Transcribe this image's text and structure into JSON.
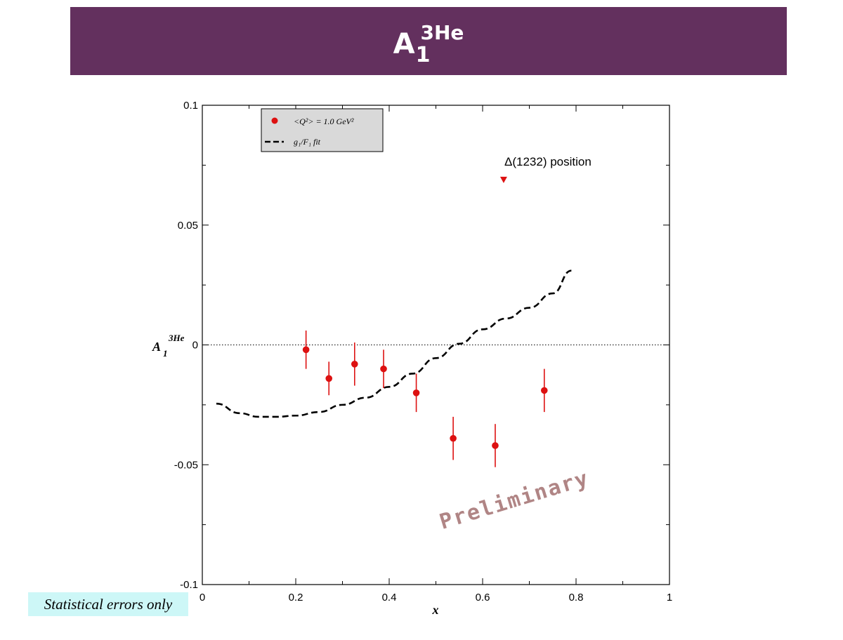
{
  "title": {
    "base": "A",
    "sub": "1",
    "sup": "3He"
  },
  "note": "Statistical errors only",
  "chart_data": {
    "type": "scatter",
    "xlabel": "x",
    "ylabel": {
      "base": "A",
      "sub": "1",
      "sup": "3He"
    },
    "xlim": [
      0,
      1
    ],
    "ylim": [
      -0.1,
      0.1
    ],
    "x_ticks": [
      0,
      0.2,
      0.4,
      0.6,
      0.8,
      1
    ],
    "x_tick_labels": [
      "0",
      "0.2",
      "0.4",
      "0.6",
      "0.8",
      "1"
    ],
    "y_ticks": [
      -0.1,
      -0.05,
      0,
      0.05,
      0.1
    ],
    "y_tick_labels": [
      "-0.1",
      "-0.05",
      "0",
      "0.05",
      "0.1"
    ],
    "zero_line": true,
    "legend": {
      "position": "top-left",
      "entries": [
        {
          "label": "<Q²> = 1.0 GeV²",
          "marker": "circle"
        },
        {
          "label": "g₁/F₁ fit",
          "marker": "dashed-line"
        }
      ]
    },
    "series": [
      {
        "name": "<Q²> = 1.0 GeV²",
        "type": "scatter",
        "color": "#dd1111",
        "x": [
          0.222,
          0.271,
          0.326,
          0.388,
          0.458,
          0.537,
          0.627,
          0.732
        ],
        "y": [
          -0.002,
          -0.014,
          -0.008,
          -0.01,
          -0.02,
          -0.039,
          -0.042,
          -0.019
        ],
        "yerr": [
          0.008,
          0.007,
          0.009,
          0.008,
          0.008,
          0.009,
          0.009,
          0.009
        ]
      },
      {
        "name": "g₁/F₁ fit",
        "type": "line",
        "style": "dashed",
        "color": "#000000",
        "x": [
          0.03,
          0.08,
          0.12,
          0.16,
          0.2,
          0.25,
          0.3,
          0.35,
          0.4,
          0.45,
          0.5,
          0.55,
          0.6,
          0.65,
          0.7,
          0.75,
          0.79
        ],
        "y": [
          -0.0245,
          -0.0285,
          -0.03,
          -0.03,
          -0.0295,
          -0.028,
          -0.025,
          -0.022,
          -0.0175,
          -0.012,
          -0.0055,
          0.0005,
          0.0065,
          0.011,
          0.0155,
          0.0215,
          0.031
        ]
      }
    ],
    "annotations": [
      {
        "text": "Δ(1232) position",
        "x": 0.645,
        "y": 0.069,
        "marker": "triangle-down",
        "color": "#dd1111"
      },
      {
        "text": "Preliminary",
        "style": "watermark",
        "color": "#b08585"
      }
    ]
  }
}
